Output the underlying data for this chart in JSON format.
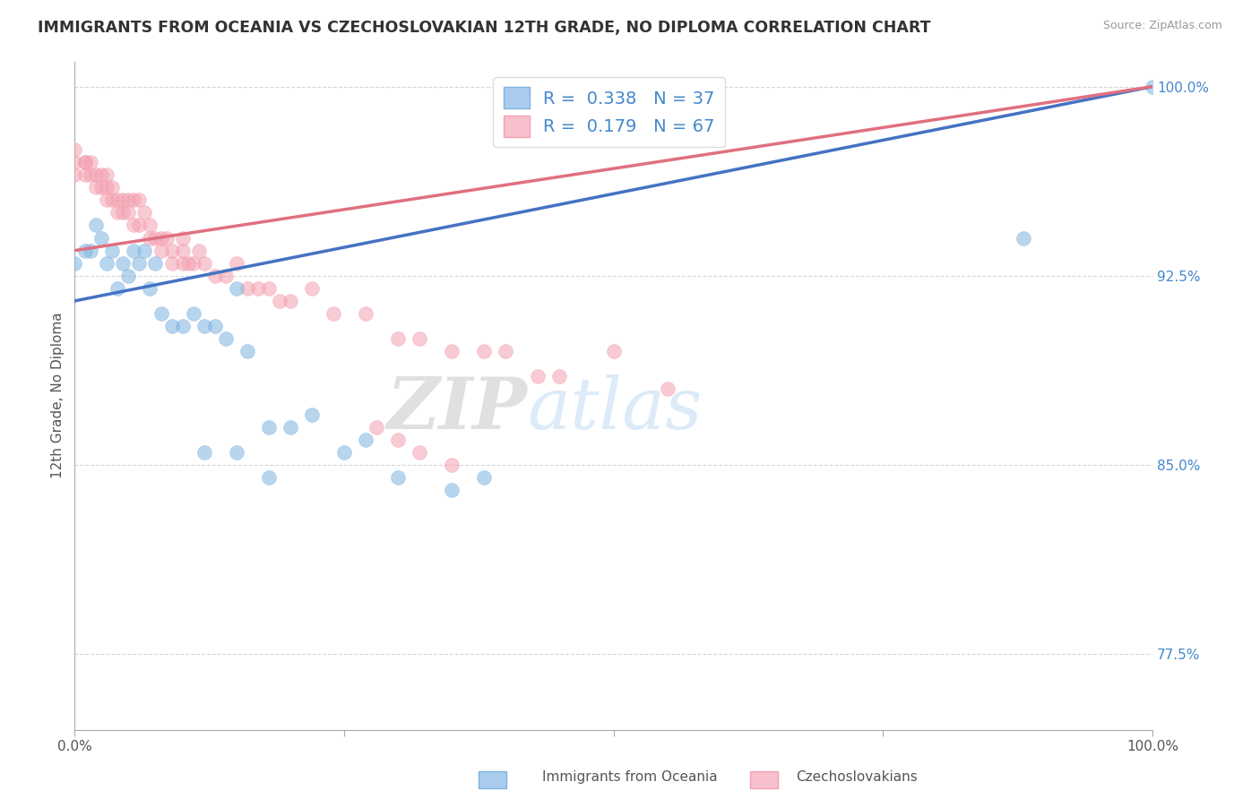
{
  "title": "IMMIGRANTS FROM OCEANIA VS CZECHOSLOVAKIAN 12TH GRADE, NO DIPLOMA CORRELATION CHART",
  "source": "Source: ZipAtlas.com",
  "ylabel": "12th Grade, No Diploma",
  "legend_label_blue": "Immigrants from Oceania",
  "legend_label_pink": "Czechoslovakians",
  "r_blue": 0.338,
  "n_blue": 37,
  "r_pink": 0.179,
  "n_pink": 67,
  "xlim": [
    0.0,
    1.0
  ],
  "ylim": [
    0.745,
    1.01
  ],
  "xticks": [
    0.0,
    0.25,
    0.5,
    0.75,
    1.0
  ],
  "xticklabels": [
    "0.0%",
    "",
    "",
    "",
    "100.0%"
  ],
  "yticks": [
    0.775,
    0.85,
    0.925,
    1.0
  ],
  "yticklabels": [
    "77.5%",
    "85.0%",
    "92.5%",
    "100.0%"
  ],
  "color_blue": "#7EB3E0",
  "color_pink": "#F4A0B0",
  "line_color_blue": "#4472C4",
  "line_color_pink": "#E07080",
  "watermark_zip": "ZIP",
  "watermark_atlas": "atlas",
  "blue_x": [
    0.0,
    0.01,
    0.015,
    0.02,
    0.025,
    0.03,
    0.035,
    0.04,
    0.045,
    0.05,
    0.055,
    0.06,
    0.065,
    0.07,
    0.075,
    0.08,
    0.09,
    0.1,
    0.11,
    0.12,
    0.13,
    0.14,
    0.15,
    0.16,
    0.18,
    0.2,
    0.22,
    0.25,
    0.27,
    0.3,
    0.35,
    0.38,
    0.12,
    0.15,
    0.18,
    0.88,
    1.0
  ],
  "blue_y": [
    0.93,
    0.935,
    0.935,
    0.945,
    0.94,
    0.93,
    0.935,
    0.92,
    0.93,
    0.925,
    0.935,
    0.93,
    0.935,
    0.92,
    0.93,
    0.91,
    0.905,
    0.905,
    0.91,
    0.905,
    0.905,
    0.9,
    0.92,
    0.895,
    0.865,
    0.865,
    0.87,
    0.855,
    0.86,
    0.845,
    0.84,
    0.845,
    0.855,
    0.855,
    0.845,
    0.94,
    1.0
  ],
  "pink_x": [
    0.0,
    0.0,
    0.0,
    0.01,
    0.01,
    0.01,
    0.015,
    0.015,
    0.02,
    0.02,
    0.025,
    0.025,
    0.03,
    0.03,
    0.03,
    0.035,
    0.035,
    0.04,
    0.04,
    0.045,
    0.045,
    0.05,
    0.05,
    0.055,
    0.055,
    0.06,
    0.06,
    0.065,
    0.07,
    0.07,
    0.075,
    0.08,
    0.08,
    0.085,
    0.09,
    0.09,
    0.1,
    0.1,
    0.1,
    0.105,
    0.11,
    0.115,
    0.12,
    0.13,
    0.14,
    0.15,
    0.16,
    0.17,
    0.18,
    0.19,
    0.2,
    0.22,
    0.24,
    0.27,
    0.3,
    0.32,
    0.35,
    0.38,
    0.4,
    0.43,
    0.45,
    0.5,
    0.55,
    0.28,
    0.3,
    0.32,
    0.35
  ],
  "pink_y": [
    0.975,
    0.97,
    0.965,
    0.97,
    0.965,
    0.97,
    0.97,
    0.965,
    0.965,
    0.96,
    0.965,
    0.96,
    0.965,
    0.955,
    0.96,
    0.955,
    0.96,
    0.955,
    0.95,
    0.95,
    0.955,
    0.955,
    0.95,
    0.945,
    0.955,
    0.945,
    0.955,
    0.95,
    0.94,
    0.945,
    0.94,
    0.935,
    0.94,
    0.94,
    0.93,
    0.935,
    0.94,
    0.93,
    0.935,
    0.93,
    0.93,
    0.935,
    0.93,
    0.925,
    0.925,
    0.93,
    0.92,
    0.92,
    0.92,
    0.915,
    0.915,
    0.92,
    0.91,
    0.91,
    0.9,
    0.9,
    0.895,
    0.895,
    0.895,
    0.885,
    0.885,
    0.895,
    0.88,
    0.865,
    0.86,
    0.855,
    0.85
  ]
}
